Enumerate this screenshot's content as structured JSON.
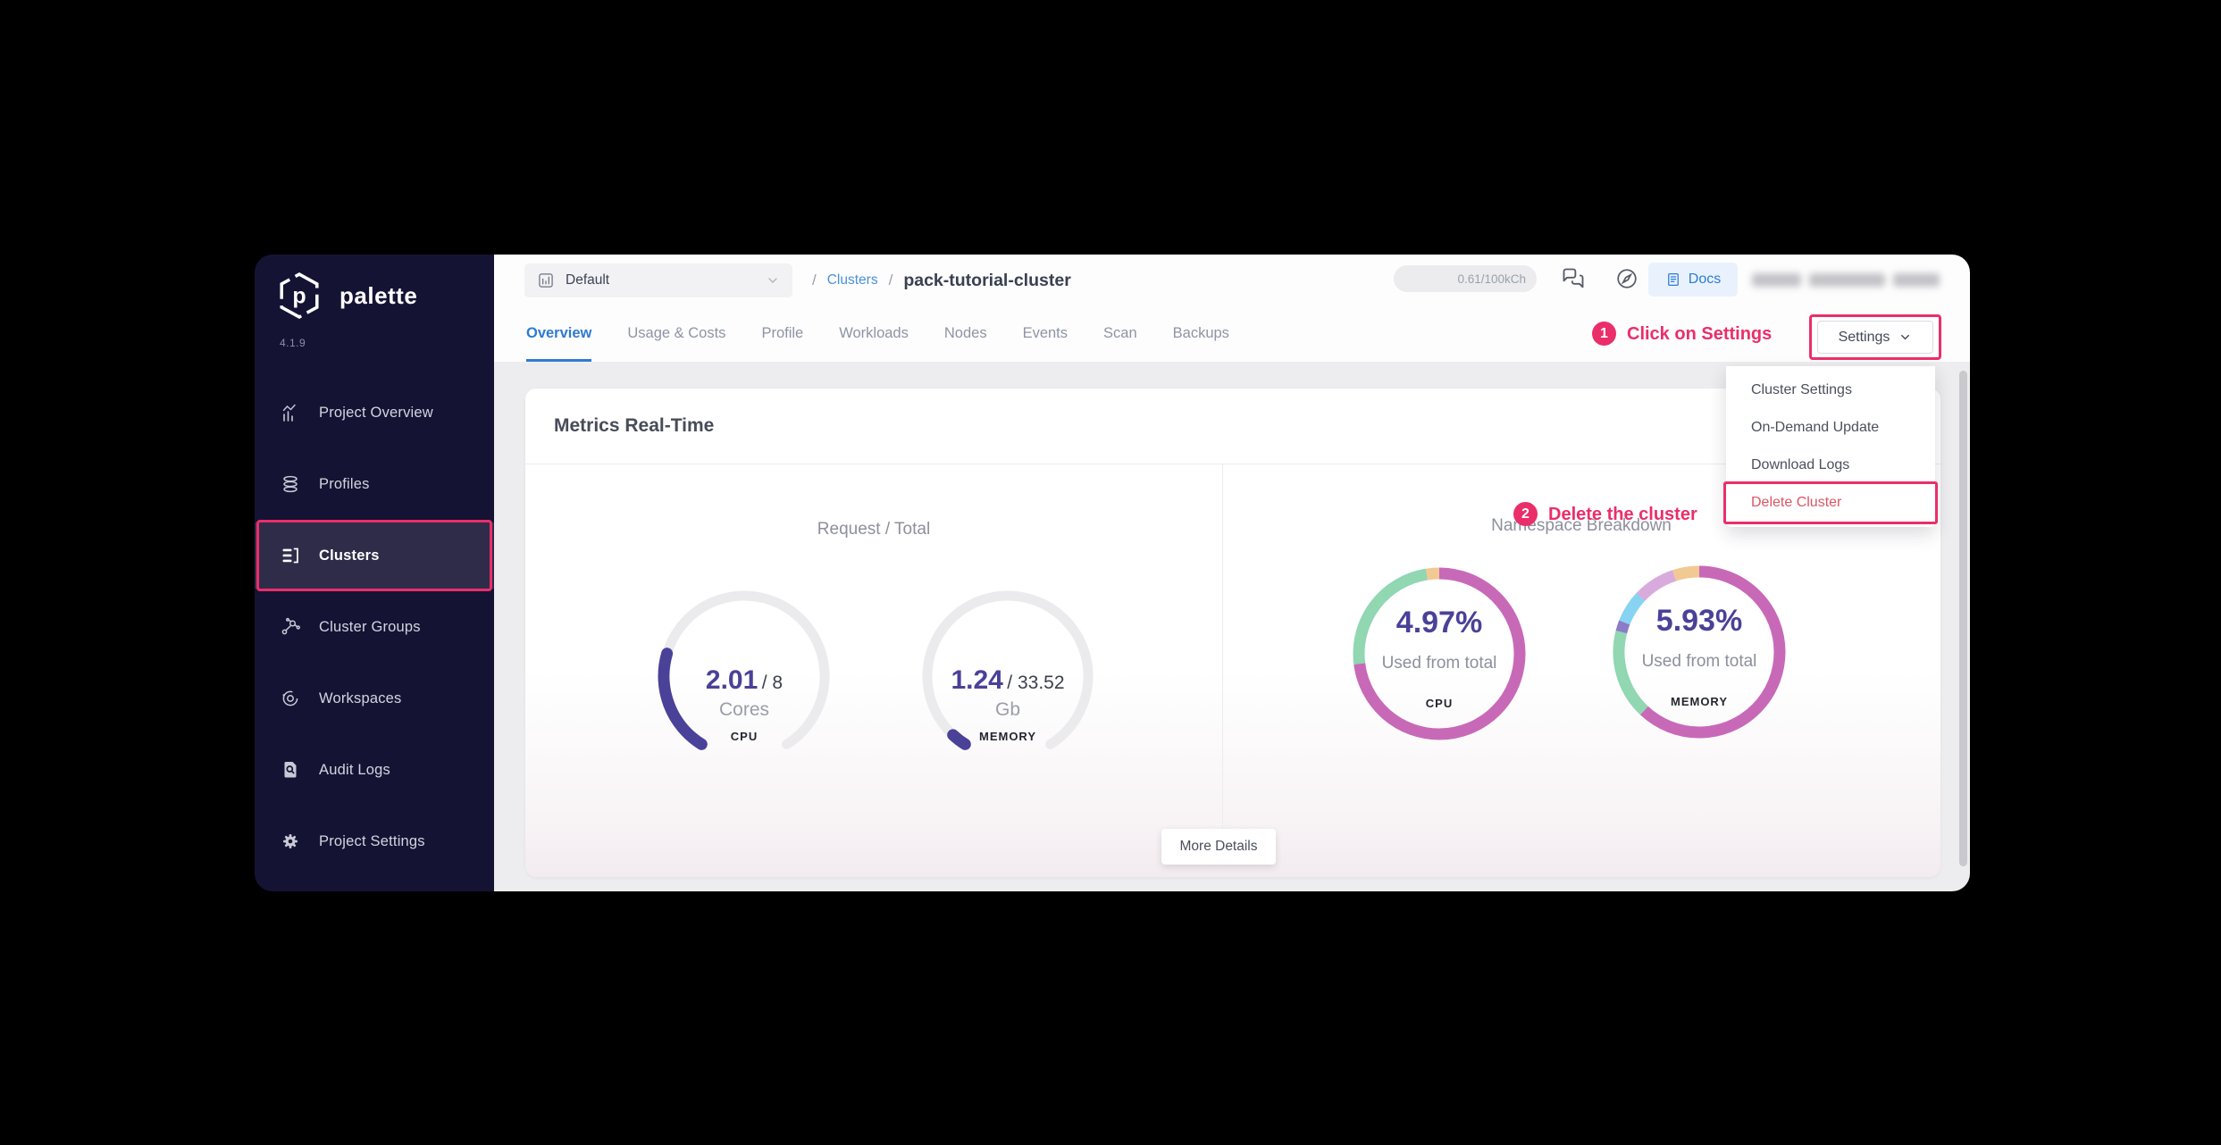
{
  "sidebar": {
    "brand": "palette",
    "version": "4.1.9",
    "items": [
      {
        "label": "Project Overview"
      },
      {
        "label": "Profiles"
      },
      {
        "label": "Clusters"
      },
      {
        "label": "Cluster Groups"
      },
      {
        "label": "Workspaces"
      },
      {
        "label": "Audit Logs"
      },
      {
        "label": "Project Settings"
      }
    ]
  },
  "topbar": {
    "project_selector_value": "Default",
    "breadcrumb_sep1": "/",
    "breadcrumb_link": "Clusters",
    "breadcrumb_sep2": "/",
    "breadcrumb_current": "pack-tutorial-cluster",
    "usage_badge": "0.61/100kCh",
    "docs_button": "Docs"
  },
  "tabs": [
    "Overview",
    "Usage & Costs",
    "Profile",
    "Workloads",
    "Nodes",
    "Events",
    "Scan",
    "Backups"
  ],
  "cluster_actions": {
    "settings_button": "Settings",
    "menu_items": [
      "Cluster Settings",
      "On-Demand Update",
      "Download Logs",
      "Delete Cluster"
    ]
  },
  "annotations": {
    "step1_number": "1",
    "step1_text": "Click on Settings",
    "step2_number": "2",
    "step2_text": "Delete the cluster"
  },
  "metrics_panel": {
    "title": "Metrics Real-Time",
    "left_section_label": "Request / Total",
    "right_section_label": "Namespace Breakdown",
    "more_details_button": "More Details",
    "gauges": [
      {
        "value": "2.01",
        "total_display": "/ 8",
        "unit": "Cores",
        "label": "CPU",
        "fraction": 0.251
      },
      {
        "value": "1.24",
        "total_display": "/ 33.52",
        "unit": "Gb",
        "label": "MEMORY",
        "fraction": 0.037
      }
    ],
    "donuts": [
      {
        "percent": "4.97%",
        "caption": "Used from total",
        "label": "CPU",
        "segments": [
          {
            "color": "#c869b8",
            "pct": 73
          },
          {
            "color": "#90d7b2",
            "pct": 24.5
          },
          {
            "color": "#f2c993",
            "pct": 2.5
          }
        ]
      },
      {
        "percent": "5.93%",
        "caption": "Used from total",
        "label": "MEMORY",
        "segments": [
          {
            "color": "#c869b8",
            "pct": 62
          },
          {
            "color": "#90d7b2",
            "pct": 17
          },
          {
            "color": "#8b7cc9",
            "pct": 2
          },
          {
            "color": "#87d3f2",
            "pct": 6
          },
          {
            "color": "#d9abdd",
            "pct": 8
          },
          {
            "color": "#f2c993",
            "pct": 5
          }
        ]
      }
    ]
  }
}
